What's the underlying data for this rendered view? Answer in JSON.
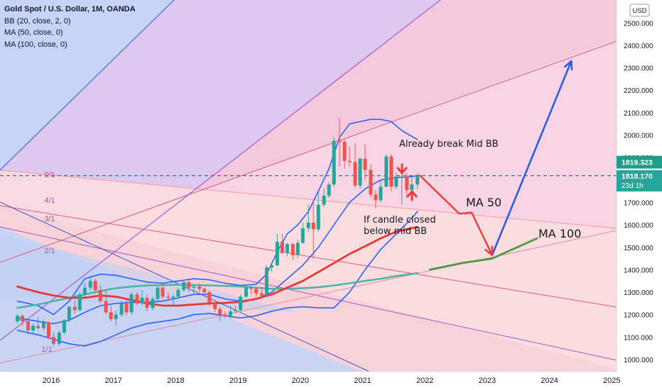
{
  "chart_data": {
    "type": "candlestick",
    "title": "Gold Spot / U.S. Dollar, 1M, OANDA",
    "indicators": [
      "BB (20, close, 2, 0)",
      "MA (50, close, 0)",
      "MA (100, close, 0)"
    ],
    "currency_label": "USD",
    "x_ticks": [
      "2016",
      "2017",
      "2018",
      "2019",
      "2020",
      "2021",
      "2022",
      "2023",
      "2024",
      "2025"
    ],
    "y_ticks": [
      1000,
      1100,
      1200,
      1300,
      1400,
      1500,
      1600,
      1700,
      1800,
      1900,
      2000,
      2100,
      2200,
      2300,
      2400,
      2500
    ],
    "y_tick_labels": [
      "1000.000",
      "1100.000",
      "1200.000",
      "1300.000",
      "1400.000",
      "1500.000",
      "1600.000",
      "1700.000",
      "1800.000",
      "1900.000",
      "2000.000",
      "2100.000",
      "2200.000",
      "2300.000",
      "2400.000",
      "2500.000"
    ],
    "ylim": [
      955,
      2560
    ],
    "xlim": [
      2015.35,
      2025.2
    ],
    "price_tags": [
      {
        "label": "1819.323",
        "value": 1819.323,
        "color": "#1f9d8a"
      },
      {
        "label": "1818.170",
        "value": 1818.17,
        "color": "#26a69a",
        "sub": "23d 1h"
      }
    ],
    "fan_labels": [
      "0/1",
      "4/1",
      "3/1",
      "2/1",
      "1/1"
    ],
    "annotations": {
      "already_break": "Already break Mid BB",
      "if_candle": "If candle closed",
      "below_mid": "below mid BB",
      "ma50": "MA 50",
      "ma100": "MA 100"
    },
    "candles": [
      [
        2015.46,
        1170,
        1205,
        1160,
        1195
      ],
      [
        2015.54,
        1195,
        1200,
        1150,
        1170
      ],
      [
        2015.63,
        1170,
        1180,
        1110,
        1130
      ],
      [
        2015.71,
        1130,
        1160,
        1120,
        1150
      ],
      [
        2015.79,
        1150,
        1190,
        1130,
        1140
      ],
      [
        2015.88,
        1140,
        1180,
        1130,
        1165
      ],
      [
        2015.96,
        1165,
        1170,
        1090,
        1100
      ],
      [
        2016.04,
        1100,
        1120,
        1060,
        1070
      ],
      [
        2016.13,
        1070,
        1130,
        1060,
        1120
      ],
      [
        2016.21,
        1120,
        1180,
        1110,
        1175
      ],
      [
        2016.29,
        1175,
        1240,
        1170,
        1235
      ],
      [
        2016.38,
        1235,
        1265,
        1205,
        1220
      ],
      [
        2016.46,
        1220,
        1300,
        1215,
        1290
      ],
      [
        2016.54,
        1290,
        1340,
        1280,
        1320
      ],
      [
        2016.63,
        1320,
        1375,
        1310,
        1350
      ],
      [
        2016.71,
        1350,
        1360,
        1300,
        1310
      ],
      [
        2016.79,
        1310,
        1330,
        1250,
        1260
      ],
      [
        2016.88,
        1260,
        1310,
        1200,
        1210
      ],
      [
        2016.96,
        1210,
        1240,
        1170,
        1180
      ],
      [
        2017.04,
        1180,
        1220,
        1150,
        1200
      ],
      [
        2017.13,
        1200,
        1260,
        1190,
        1250
      ],
      [
        2017.21,
        1250,
        1270,
        1195,
        1210
      ],
      [
        2017.29,
        1210,
        1300,
        1200,
        1290
      ],
      [
        2017.38,
        1290,
        1300,
        1240,
        1250
      ],
      [
        2017.46,
        1250,
        1310,
        1240,
        1275
      ],
      [
        2017.54,
        1275,
        1290,
        1215,
        1230
      ],
      [
        2017.63,
        1230,
        1280,
        1220,
        1270
      ],
      [
        2017.71,
        1270,
        1330,
        1260,
        1320
      ],
      [
        2017.79,
        1320,
        1340,
        1270,
        1280
      ],
      [
        2017.88,
        1280,
        1300,
        1260,
        1275
      ],
      [
        2017.96,
        1275,
        1290,
        1240,
        1280
      ],
      [
        2018.04,
        1280,
        1320,
        1270,
        1310
      ],
      [
        2018.13,
        1310,
        1350,
        1300,
        1345
      ],
      [
        2018.21,
        1345,
        1355,
        1300,
        1320
      ],
      [
        2018.29,
        1320,
        1335,
        1290,
        1325
      ],
      [
        2018.38,
        1325,
        1340,
        1300,
        1315
      ],
      [
        2018.46,
        1315,
        1320,
        1280,
        1300
      ],
      [
        2018.54,
        1300,
        1305,
        1240,
        1255
      ],
      [
        2018.63,
        1255,
        1265,
        1210,
        1225
      ],
      [
        2018.71,
        1225,
        1235,
        1170,
        1200
      ],
      [
        2018.79,
        1200,
        1215,
        1185,
        1195
      ],
      [
        2018.88,
        1195,
        1240,
        1180,
        1215
      ],
      [
        2018.96,
        1215,
        1240,
        1205,
        1220
      ],
      [
        2019.04,
        1220,
        1290,
        1215,
        1280
      ],
      [
        2019.13,
        1280,
        1330,
        1275,
        1320
      ],
      [
        2019.21,
        1320,
        1335,
        1290,
        1315
      ],
      [
        2019.29,
        1315,
        1320,
        1280,
        1295
      ],
      [
        2019.38,
        1295,
        1320,
        1275,
        1285
      ],
      [
        2019.46,
        1285,
        1420,
        1280,
        1410
      ],
      [
        2019.54,
        1410,
        1430,
        1390,
        1420
      ],
      [
        2019.63,
        1420,
        1560,
        1415,
        1525
      ],
      [
        2019.71,
        1525,
        1560,
        1470,
        1475
      ],
      [
        2019.79,
        1475,
        1520,
        1460,
        1515
      ],
      [
        2019.88,
        1515,
        1520,
        1445,
        1465
      ],
      [
        2019.96,
        1465,
        1535,
        1450,
        1520
      ],
      [
        2020.04,
        1520,
        1610,
        1515,
        1585
      ],
      [
        2020.13,
        1585,
        1690,
        1570,
        1610
      ],
      [
        2020.21,
        1610,
        1700,
        1450,
        1580
      ],
      [
        2020.29,
        1580,
        1750,
        1570,
        1690
      ],
      [
        2020.38,
        1690,
        1760,
        1680,
        1730
      ],
      [
        2020.46,
        1730,
        1790,
        1720,
        1780
      ],
      [
        2020.54,
        1780,
        1990,
        1770,
        1975
      ],
      [
        2020.63,
        1975,
        2075,
        1860,
        1970
      ],
      [
        2020.71,
        1970,
        1980,
        1850,
        1885
      ],
      [
        2020.79,
        1885,
        1950,
        1860,
        1880
      ],
      [
        2020.88,
        1880,
        1965,
        1765,
        1775
      ],
      [
        2020.96,
        1775,
        1900,
        1760,
        1895
      ],
      [
        2021.04,
        1895,
        1960,
        1800,
        1845
      ],
      [
        2021.13,
        1845,
        1870,
        1720,
        1735
      ],
      [
        2021.21,
        1735,
        1755,
        1675,
        1710
      ],
      [
        2021.29,
        1710,
        1800,
        1700,
        1770
      ],
      [
        2021.38,
        1770,
        1915,
        1765,
        1905
      ],
      [
        2021.46,
        1905,
        1915,
        1750,
        1770
      ],
      [
        2021.54,
        1770,
        1835,
        1760,
        1815
      ],
      [
        2021.63,
        1815,
        1835,
        1690,
        1815
      ],
      [
        2021.71,
        1815,
        1830,
        1720,
        1755
      ],
      [
        2021.79,
        1755,
        1815,
        1750,
        1780
      ],
      [
        2021.88,
        1780,
        1830,
        1760,
        1818
      ]
    ],
    "bb_upper": [
      [
        2015.46,
        1260
      ],
      [
        2015.79,
        1240
      ],
      [
        2016.04,
        1200
      ],
      [
        2016.29,
        1260
      ],
      [
        2016.54,
        1360
      ],
      [
        2016.79,
        1380
      ],
      [
        2017.04,
        1375
      ],
      [
        2017.29,
        1360
      ],
      [
        2017.54,
        1345
      ],
      [
        2017.79,
        1340
      ],
      [
        2018.04,
        1350
      ],
      [
        2018.29,
        1360
      ],
      [
        2018.54,
        1355
      ],
      [
        2018.79,
        1340
      ],
      [
        2019.04,
        1330
      ],
      [
        2019.29,
        1335
      ],
      [
        2019.46,
        1380
      ],
      [
        2019.63,
        1480
      ],
      [
        2019.79,
        1560
      ],
      [
        2019.96,
        1600
      ],
      [
        2020.13,
        1660
      ],
      [
        2020.29,
        1750
      ],
      [
        2020.46,
        1850
      ],
      [
        2020.63,
        1990
      ],
      [
        2020.79,
        2050
      ],
      [
        2020.96,
        2060
      ],
      [
        2021.13,
        2070
      ],
      [
        2021.29,
        2070
      ],
      [
        2021.46,
        2060
      ],
      [
        2021.63,
        2020
      ],
      [
        2021.88,
        1980
      ]
    ],
    "bb_mid": [
      [
        2015.46,
        1185
      ],
      [
        2015.79,
        1170
      ],
      [
        2016.04,
        1160
      ],
      [
        2016.29,
        1175
      ],
      [
        2016.54,
        1210
      ],
      [
        2016.79,
        1240
      ],
      [
        2017.04,
        1250
      ],
      [
        2017.29,
        1255
      ],
      [
        2017.54,
        1255
      ],
      [
        2017.79,
        1260
      ],
      [
        2018.04,
        1275
      ],
      [
        2018.29,
        1290
      ],
      [
        2018.54,
        1290
      ],
      [
        2018.79,
        1270
      ],
      [
        2019.04,
        1260
      ],
      [
        2019.29,
        1270
      ],
      [
        2019.54,
        1300
      ],
      [
        2019.79,
        1360
      ],
      [
        2020.04,
        1420
      ],
      [
        2020.29,
        1500
      ],
      [
        2020.54,
        1600
      ],
      [
        2020.79,
        1700
      ],
      [
        2021.04,
        1760
      ],
      [
        2021.29,
        1800
      ],
      [
        2021.54,
        1810
      ],
      [
        2021.79,
        1815
      ],
      [
        2021.88,
        1820
      ]
    ],
    "bb_lower": [
      [
        2015.46,
        1130
      ],
      [
        2015.79,
        1110
      ],
      [
        2016.04,
        1090
      ],
      [
        2016.29,
        1070
      ],
      [
        2016.54,
        1060
      ],
      [
        2016.79,
        1080
      ],
      [
        2017.04,
        1110
      ],
      [
        2017.29,
        1140
      ],
      [
        2017.54,
        1160
      ],
      [
        2017.79,
        1170
      ],
      [
        2018.04,
        1180
      ],
      [
        2018.29,
        1200
      ],
      [
        2018.54,
        1205
      ],
      [
        2018.79,
        1195
      ],
      [
        2019.04,
        1185
      ],
      [
        2019.29,
        1195
      ],
      [
        2019.54,
        1215
      ],
      [
        2019.79,
        1230
      ],
      [
        2020.04,
        1235
      ],
      [
        2020.29,
        1230
      ],
      [
        2020.54,
        1230
      ],
      [
        2020.79,
        1300
      ],
      [
        2021.04,
        1400
      ],
      [
        2021.29,
        1490
      ],
      [
        2021.54,
        1560
      ],
      [
        2021.79,
        1630
      ],
      [
        2021.88,
        1660
      ]
    ],
    "ma50": [
      [
        2015.46,
        1325
      ],
      [
        2015.79,
        1300
      ],
      [
        2016.04,
        1285
      ],
      [
        2016.29,
        1275
      ],
      [
        2016.54,
        1275
      ],
      [
        2016.79,
        1285
      ],
      [
        2017.04,
        1280
      ],
      [
        2017.29,
        1265
      ],
      [
        2017.54,
        1250
      ],
      [
        2017.79,
        1240
      ],
      [
        2018.04,
        1240
      ],
      [
        2018.29,
        1245
      ],
      [
        2018.54,
        1250
      ],
      [
        2018.79,
        1252
      ],
      [
        2019.04,
        1257
      ],
      [
        2019.29,
        1270
      ],
      [
        2019.54,
        1290
      ],
      [
        2019.79,
        1320
      ],
      [
        2020.04,
        1350
      ],
      [
        2020.29,
        1390
      ],
      [
        2020.54,
        1430
      ],
      [
        2020.79,
        1470
      ],
      [
        2021.04,
        1505
      ],
      [
        2021.29,
        1540
      ],
      [
        2021.54,
        1570
      ],
      [
        2021.88,
        1590
      ]
    ],
    "ma100": [
      [
        2015.46,
        1230
      ],
      [
        2015.79,
        1245
      ],
      [
        2016.04,
        1260
      ],
      [
        2016.29,
        1275
      ],
      [
        2016.54,
        1290
      ],
      [
        2016.79,
        1305
      ],
      [
        2017.04,
        1318
      ],
      [
        2017.29,
        1325
      ],
      [
        2017.54,
        1330
      ],
      [
        2017.79,
        1332
      ],
      [
        2018.04,
        1333
      ],
      [
        2018.29,
        1332
      ],
      [
        2018.54,
        1330
      ],
      [
        2018.79,
        1328
      ],
      [
        2019.04,
        1325
      ],
      [
        2019.29,
        1320
      ],
      [
        2019.54,
        1315
      ],
      [
        2019.79,
        1315
      ],
      [
        2020.04,
        1318
      ],
      [
        2020.29,
        1322
      ],
      [
        2020.54,
        1330
      ],
      [
        2020.79,
        1340
      ],
      [
        2021.04,
        1350
      ],
      [
        2021.29,
        1360
      ],
      [
        2021.54,
        1372
      ],
      [
        2021.88,
        1385
      ]
    ],
    "projection_red": [
      [
        2021.92,
        1820
      ],
      [
        2022.55,
        1650
      ],
      [
        2022.75,
        1655
      ],
      [
        2023.08,
        1465
      ]
    ],
    "projection_blue": [
      [
        2023.08,
        1465
      ],
      [
        2024.35,
        2330
      ]
    ],
    "ma100_forecast": [
      [
        2022.08,
        1400
      ],
      [
        2022.6,
        1430
      ],
      [
        2023.08,
        1450
      ],
      [
        2023.8,
        1540
      ]
    ]
  }
}
